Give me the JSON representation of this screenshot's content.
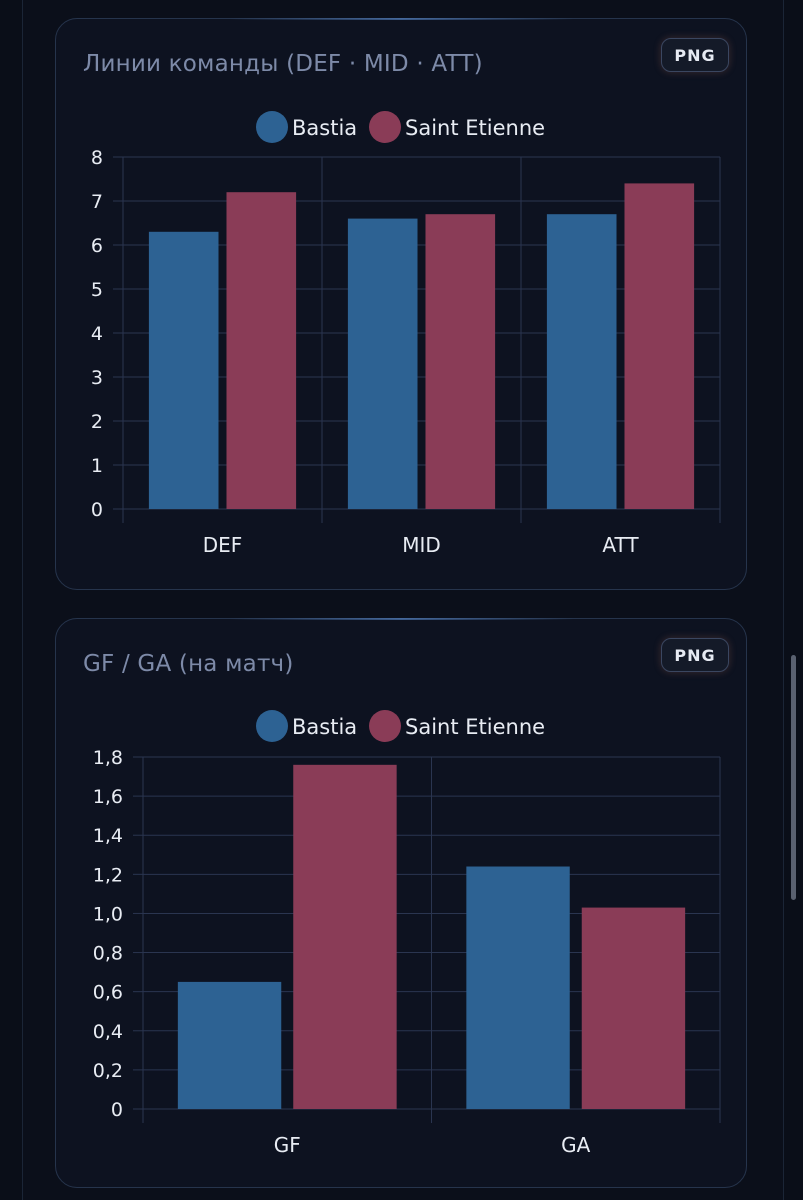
{
  "charts": [
    {
      "title": "Линии команды (DEF · MID · ATT)",
      "export_label": "PNG"
    },
    {
      "title": "GF / GA (на матч)",
      "export_label": "PNG"
    }
  ],
  "colors": {
    "bastia": "#2d6293",
    "saint_etienne": "#8a3c57",
    "grid": "#2a3550",
    "axis_text": "#e8ecf3"
  },
  "chart_data": [
    {
      "type": "bar",
      "title": "Линии команды (DEF · MID · ATT)",
      "categories": [
        "DEF",
        "MID",
        "ATT"
      ],
      "series": [
        {
          "name": "Bastia",
          "values": [
            6.3,
            6.6,
            6.7
          ]
        },
        {
          "name": "Saint Etienne",
          "values": [
            7.2,
            6.7,
            7.4
          ]
        }
      ],
      "ylim": [
        0,
        8
      ],
      "yticks": [
        "0",
        "1",
        "2",
        "3",
        "4",
        "5",
        "6",
        "7",
        "8"
      ],
      "legend": "top-center",
      "grid": true
    },
    {
      "type": "bar",
      "title": "GF / GA (на матч)",
      "categories": [
        "GF",
        "GA"
      ],
      "series": [
        {
          "name": "Bastia",
          "values": [
            0.65,
            1.24
          ]
        },
        {
          "name": "Saint Etienne",
          "values": [
            1.76,
            1.03
          ]
        }
      ],
      "ylim": [
        0,
        1.8
      ],
      "yticks": [
        "0",
        "0,2",
        "0,4",
        "0,6",
        "0,8",
        "1,0",
        "1,2",
        "1,4",
        "1,6",
        "1,8"
      ],
      "legend": "top-center",
      "grid": true
    }
  ]
}
